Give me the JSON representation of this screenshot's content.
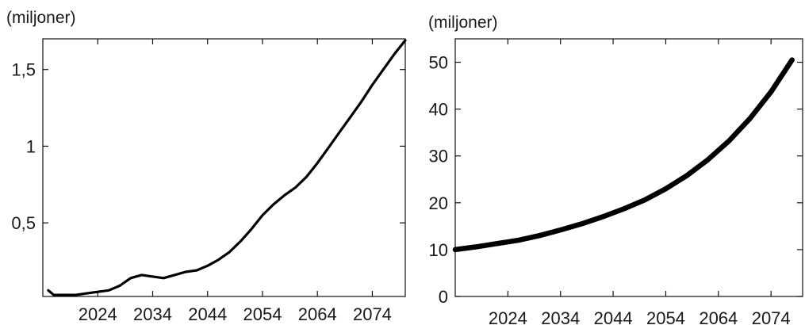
{
  "chart_data": [
    {
      "type": "line",
      "unit_label": "(miljoner)",
      "xlabel": "",
      "ylabel": "",
      "xlim": [
        2014,
        2080
      ],
      "ylim": [
        0.02,
        1.7
      ],
      "x_ticks": [
        2024,
        2034,
        2044,
        2054,
        2064,
        2074
      ],
      "x_tick_labels": [
        "2024",
        "2034",
        "2044",
        "2054",
        "2064",
        "2074"
      ],
      "y_ticks": [
        0.5,
        1,
        1.5
      ],
      "y_tick_labels": [
        "0,5",
        "1",
        "1,5"
      ],
      "grid": false,
      "colors": {
        "line": "#000000"
      },
      "series": [
        {
          "x": [
            2015,
            2016,
            2018,
            2020,
            2022,
            2024,
            2026,
            2028,
            2030,
            2032,
            2034,
            2036,
            2038,
            2040,
            2042,
            2044,
            2046,
            2048,
            2050,
            2052,
            2054,
            2056,
            2058,
            2060,
            2062,
            2064,
            2066,
            2068,
            2070,
            2072,
            2074,
            2076,
            2078,
            2080
          ],
          "y": [
            0.06,
            0.03,
            0.03,
            0.03,
            0.04,
            0.05,
            0.06,
            0.09,
            0.14,
            0.16,
            0.15,
            0.14,
            0.16,
            0.18,
            0.19,
            0.22,
            0.26,
            0.31,
            0.38,
            0.46,
            0.55,
            0.62,
            0.68,
            0.73,
            0.8,
            0.89,
            0.99,
            1.09,
            1.19,
            1.29,
            1.4,
            1.5,
            1.6,
            1.69
          ]
        }
      ]
    },
    {
      "type": "line",
      "unit_label": "(miljoner)",
      "xlabel": "",
      "ylabel": "",
      "xlim": [
        2014,
        2080
      ],
      "ylim": [
        0,
        55
      ],
      "x_ticks": [
        2024,
        2034,
        2044,
        2054,
        2064,
        2074
      ],
      "x_tick_labels": [
        "2024",
        "2034",
        "2044",
        "2054",
        "2064",
        "2074"
      ],
      "y_ticks": [
        0,
        10,
        20,
        30,
        40,
        50
      ],
      "y_tick_labels": [
        "0",
        "10",
        "20",
        "30",
        "40",
        "50"
      ],
      "grid": false,
      "colors": {
        "line": "#000000"
      },
      "series": [
        {
          "x": [
            2014,
            2018,
            2022,
            2026,
            2030,
            2034,
            2038,
            2042,
            2046,
            2050,
            2054,
            2058,
            2062,
            2066,
            2070,
            2074,
            2078
          ],
          "y": [
            10.0,
            10.6,
            11.3,
            12.0,
            13.0,
            14.2,
            15.5,
            17.0,
            18.7,
            20.6,
            23.0,
            25.8,
            29.2,
            33.2,
            38.0,
            43.7,
            50.5
          ]
        }
      ]
    }
  ]
}
